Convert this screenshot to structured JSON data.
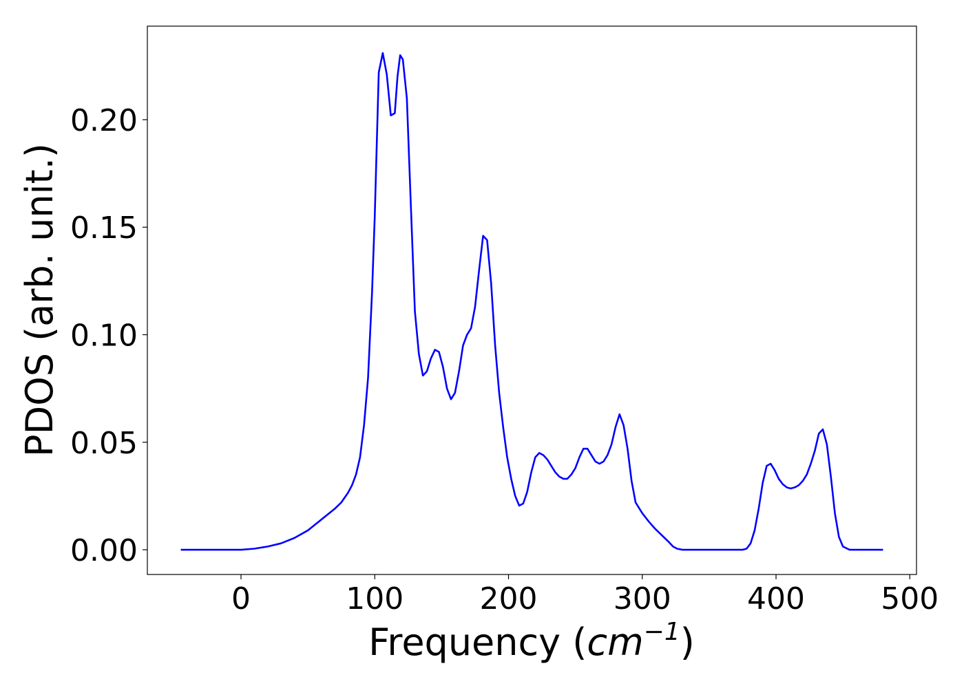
{
  "chart_data": {
    "type": "line",
    "title": "",
    "xlabel": {
      "prefix": "Frequency (",
      "unit_base": "cm",
      "unit_exp": "−1",
      "suffix": ")"
    },
    "ylabel": "PDOS (arb. unit.)",
    "xlim": [
      -70,
      505
    ],
    "ylim": [
      -0.0115,
      0.2435
    ],
    "xticks": [
      0,
      100,
      200,
      300,
      400,
      500
    ],
    "xtick_labels": [
      "0",
      "100",
      "200",
      "300",
      "400",
      "500"
    ],
    "yticks": [
      0.0,
      0.05,
      0.1,
      0.15,
      0.2
    ],
    "ytick_labels": [
      "0.00",
      "0.05",
      "0.10",
      "0.15",
      "0.20"
    ],
    "grid": false,
    "legend": "none",
    "series": [
      {
        "color": "#0000ff",
        "x": [
          -45,
          0,
          10,
          20,
          30,
          40,
          50,
          60,
          70,
          75,
          80,
          83,
          86,
          89,
          92,
          95,
          98,
          100,
          103,
          106,
          109,
          112,
          115,
          117,
          119,
          121,
          124,
          127,
          130,
          133,
          136,
          139,
          142,
          145,
          148,
          151,
          154,
          157,
          160,
          163,
          166,
          169,
          172,
          175,
          178,
          181,
          184,
          187,
          190,
          193,
          196,
          199,
          202,
          205,
          208,
          211,
          214,
          217,
          220,
          223,
          226,
          229,
          232,
          235,
          238,
          241,
          244,
          247,
          250,
          253,
          256,
          259,
          262,
          265,
          268,
          271,
          274,
          277,
          280,
          283,
          286,
          289,
          292,
          295,
          300,
          305,
          310,
          315,
          320,
          323,
          326,
          330,
          340,
          360,
          375,
          378,
          381,
          384,
          387,
          390,
          393,
          396,
          399,
          402,
          405,
          408,
          411,
          414,
          417,
          420,
          423,
          426,
          429,
          432,
          435,
          438,
          441,
          444,
          447,
          450,
          455,
          465,
          480
        ],
        "y": [
          0,
          0,
          0.0005,
          0.0015,
          0.003,
          0.0055,
          0.009,
          0.014,
          0.019,
          0.022,
          0.0265,
          0.03,
          0.035,
          0.043,
          0.058,
          0.08,
          0.12,
          0.155,
          0.222,
          0.231,
          0.221,
          0.202,
          0.203,
          0.22,
          0.23,
          0.228,
          0.21,
          0.16,
          0.111,
          0.091,
          0.081,
          0.083,
          0.089,
          0.093,
          0.092,
          0.085,
          0.075,
          0.07,
          0.073,
          0.083,
          0.095,
          0.1,
          0.103,
          0.113,
          0.13,
          0.146,
          0.144,
          0.124,
          0.095,
          0.073,
          0.057,
          0.043,
          0.033,
          0.025,
          0.0205,
          0.0215,
          0.027,
          0.036,
          0.043,
          0.045,
          0.044,
          0.042,
          0.039,
          0.036,
          0.034,
          0.033,
          0.033,
          0.035,
          0.038,
          0.043,
          0.047,
          0.047,
          0.044,
          0.041,
          0.04,
          0.041,
          0.044,
          0.049,
          0.057,
          0.063,
          0.058,
          0.047,
          0.032,
          0.022,
          0.017,
          0.013,
          0.0095,
          0.0065,
          0.0035,
          0.0015,
          0.0005,
          0,
          0,
          0,
          0,
          0.0005,
          0.003,
          0.009,
          0.019,
          0.031,
          0.039,
          0.04,
          0.037,
          0.033,
          0.0305,
          0.029,
          0.0285,
          0.029,
          0.03,
          0.032,
          0.035,
          0.04,
          0.046,
          0.054,
          0.056,
          0.049,
          0.034,
          0.017,
          0.006,
          0.0015,
          0,
          0,
          0
        ]
      }
    ]
  }
}
